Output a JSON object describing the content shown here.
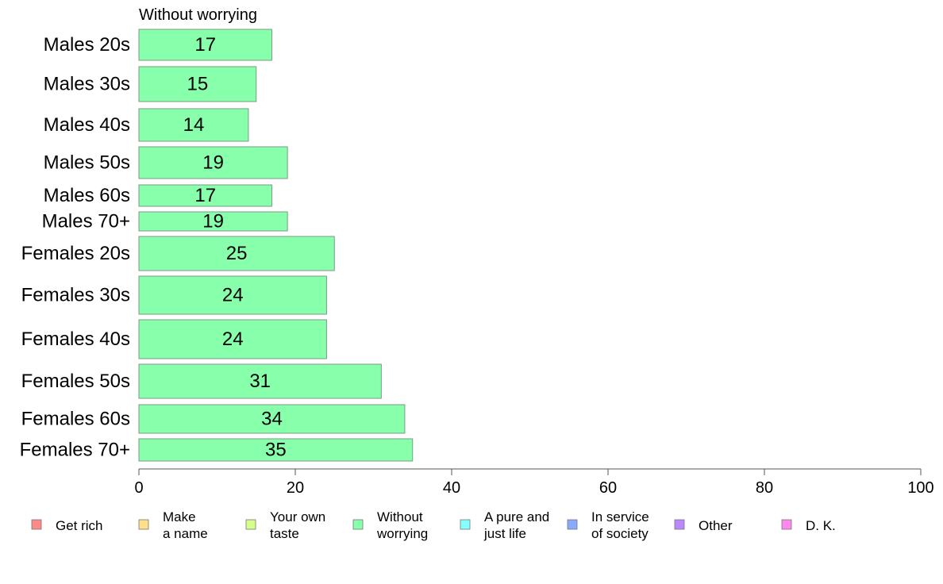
{
  "chart_data": {
    "type": "bar",
    "orientation": "horizontal",
    "title": "Without worrying",
    "categories": [
      "Males 20s",
      "Males 30s",
      "Males 40s",
      "Males 50s",
      "Males 60s",
      "Males 70+",
      "Females 20s",
      "Females 30s",
      "Females 40s",
      "Females 50s",
      "Females 60s",
      "Females 70+"
    ],
    "values": [
      17,
      15,
      14,
      19,
      17,
      19,
      25,
      24,
      24,
      31,
      34,
      35
    ],
    "xlim": [
      0,
      100
    ],
    "xticks": [
      0,
      20,
      40,
      60,
      80,
      100
    ],
    "grid": false,
    "legend_position": "bottom",
    "bar_color": "#88ffaa",
    "legend": [
      {
        "lines": [
          "Get rich"
        ],
        "color": "#ff8888"
      },
      {
        "lines": [
          "Make",
          "a name"
        ],
        "color": "#ffe088"
      },
      {
        "lines": [
          "Your own",
          "taste"
        ],
        "color": "#d4ff88"
      },
      {
        "lines": [
          "Without",
          "worrying"
        ],
        "color": "#88ffaa"
      },
      {
        "lines": [
          "A pure and",
          "just life"
        ],
        "color": "#88ffff"
      },
      {
        "lines": [
          "In service",
          "of society"
        ],
        "color": "#88aaff"
      },
      {
        "lines": [
          "Other"
        ],
        "color": "#bb88ff"
      },
      {
        "lines": [
          "D. K."
        ],
        "color": "#ff88ee"
      }
    ]
  }
}
